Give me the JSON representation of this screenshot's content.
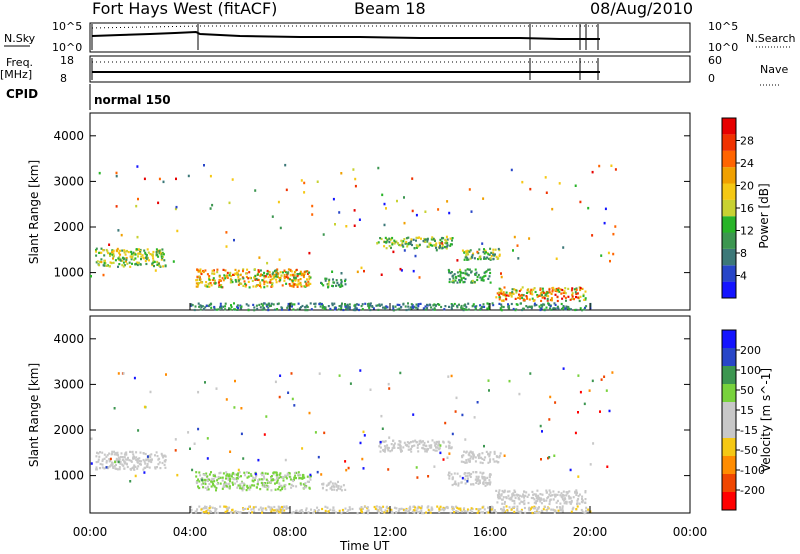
{
  "header": {
    "station": "Fort Hays West (fitACF)",
    "beam": "Beam 18",
    "date": "08/Aug/2010"
  },
  "top_panels": {
    "nsky_label": "N.Sky",
    "nsky_tick_top": "10^5",
    "nsky_tick_bottom": "10^0",
    "nsearch_label": "N.Search",
    "nsearch_tick_top": "10^5",
    "nsearch_tick_bottom": "10^0",
    "freq_label": "Freq.",
    "freq_unit": "[MHz]",
    "freq_tick_top": "18",
    "freq_tick_bottom": "8",
    "nave_label": "Nave",
    "nave_tick_top": "60",
    "nave_tick_bottom": "0",
    "cpid_label": "CPID",
    "cpid_value": "normal 150"
  },
  "colors": {
    "power": [
      "#1414ff",
      "#2846c8",
      "#3c7878",
      "#3c9650",
      "#28b428",
      "#c8d232",
      "#f5c814",
      "#f0a000",
      "#ff6400",
      "#f03200",
      "#e60000"
    ],
    "velocity": [
      "#ff0000",
      "#f04600",
      "#ff8c00",
      "#f5c814",
      "#c8c8c8",
      "#c8c8c8",
      "#78d23c",
      "#3c9650",
      "#2846c8",
      "#1414ff"
    ]
  },
  "chart_data": [
    {
      "type": "heatmap",
      "name": "power",
      "ylabel": "Slant Range [km]",
      "ylim": [
        180,
        4500
      ],
      "yticks": [
        "1000",
        "2000",
        "3000",
        "4000"
      ],
      "xlim": [
        0,
        24
      ],
      "xticks": [
        "00:00",
        "04:00",
        "08:00",
        "12:00",
        "16:00",
        "20:00",
        "00:00"
      ],
      "colorbar_label": "Power [dB]",
      "colorbar_ticks": [
        "4",
        "8",
        "12",
        "16",
        "20",
        "24",
        "28"
      ],
      "colorbar_range": [
        0,
        30
      ],
      "regions": [
        {
          "t": [
            0.2,
            3.0
          ],
          "r": [
            1150,
            1550
          ],
          "v": [
            8,
            20
          ]
        },
        {
          "t": [
            4.2,
            8.8
          ],
          "r": [
            700,
            1100
          ],
          "v": [
            10,
            26
          ]
        },
        {
          "t": [
            9.2,
            10.2
          ],
          "r": [
            700,
            900
          ],
          "v": [
            6,
            14
          ]
        },
        {
          "t": [
            11.5,
            14.5
          ],
          "r": [
            1550,
            1800
          ],
          "v": [
            6,
            18
          ]
        },
        {
          "t": [
            14.8,
            16.4
          ],
          "r": [
            1300,
            1550
          ],
          "v": [
            6,
            18
          ]
        },
        {
          "t": [
            16.2,
            19.8
          ],
          "r": [
            400,
            700
          ],
          "v": [
            10,
            28
          ]
        },
        {
          "t": [
            14.3,
            16.0
          ],
          "r": [
            800,
            1100
          ],
          "v": [
            6,
            14
          ]
        },
        {
          "t": [
            4.0,
            20.0
          ],
          "r": [
            200,
            350
          ],
          "v": [
            4,
            12
          ]
        }
      ]
    },
    {
      "type": "heatmap",
      "name": "velocity",
      "ylabel": "Slant Range [km]",
      "ylim": [
        180,
        4500
      ],
      "yticks": [
        "1000",
        "2000",
        "3000",
        "4000"
      ],
      "xlim": [
        0,
        24
      ],
      "xticks": [
        "00:00",
        "04:00",
        "08:00",
        "12:00",
        "16:00",
        "20:00",
        "00:00"
      ],
      "xlabel": "Time UT",
      "colorbar_label": "Velocity [m s^-1]",
      "colorbar_ticks": [
        "-200",
        "-100",
        "-50",
        "-15",
        "15",
        "50",
        "100",
        "200"
      ],
      "colorbar_range": [
        -250,
        250
      ],
      "regions": [
        {
          "t": [
            0.2,
            3.0
          ],
          "r": [
            1150,
            1550
          ],
          "v": [
            -20,
            20
          ]
        },
        {
          "t": [
            4.2,
            8.8
          ],
          "r": [
            700,
            1100
          ],
          "v": [
            20,
            90
          ]
        },
        {
          "t": [
            9.2,
            10.2
          ],
          "r": [
            700,
            900
          ],
          "v": [
            -10,
            40
          ]
        },
        {
          "t": [
            11.5,
            14.5
          ],
          "r": [
            1550,
            1800
          ],
          "v": [
            -40,
            20
          ]
        },
        {
          "t": [
            14.8,
            16.4
          ],
          "r": [
            1300,
            1550
          ],
          "v": [
            -30,
            30
          ]
        },
        {
          "t": [
            16.2,
            19.8
          ],
          "r": [
            400,
            700
          ],
          "v": [
            -20,
            20
          ]
        },
        {
          "t": [
            14.3,
            16.0
          ],
          "r": [
            800,
            1100
          ],
          "v": [
            -20,
            20
          ]
        },
        {
          "t": [
            4.0,
            20.0
          ],
          "r": [
            200,
            350
          ],
          "v": [
            -60,
            -20
          ]
        }
      ]
    }
  ]
}
